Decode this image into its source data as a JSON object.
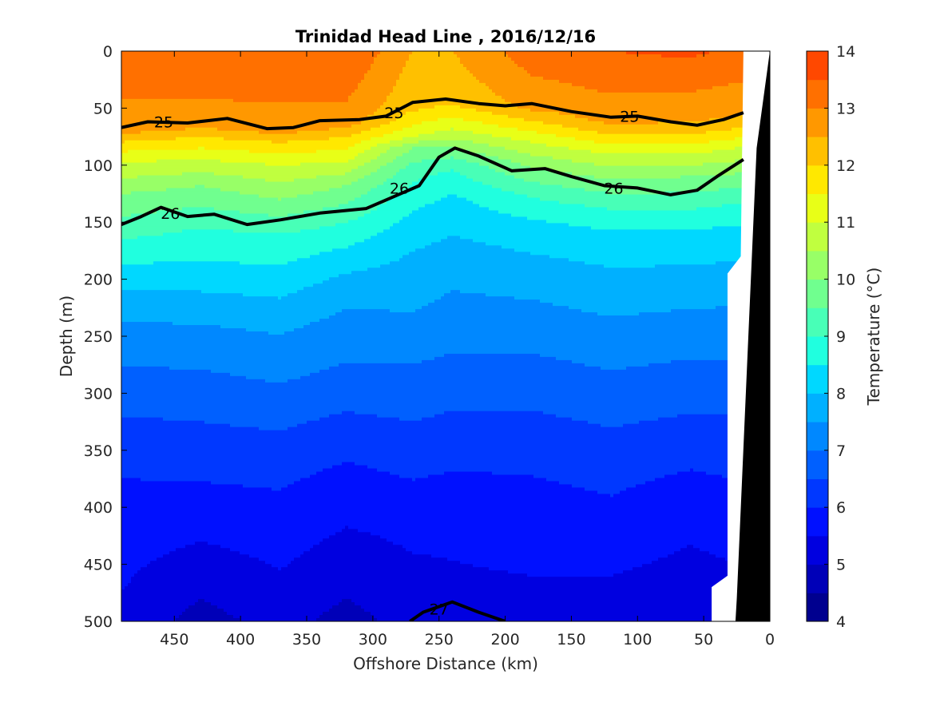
{
  "chart_data": {
    "type": "contourf",
    "title": "Trinidad Head Line , 2016/12/16",
    "xlabel": "Offshore Distance (km)",
    "ylabel": "Depth (m)",
    "colorbar_label": "Temperature (°C)",
    "xlim": [
      490,
      0
    ],
    "ylim": [
      0,
      500
    ],
    "x_reversed": true,
    "y_reversed": true,
    "xticks": [
      450,
      400,
      350,
      300,
      250,
      200,
      150,
      100,
      50,
      0
    ],
    "yticks": [
      0,
      50,
      100,
      150,
      200,
      250,
      300,
      350,
      400,
      450,
      500
    ],
    "colorbar": {
      "min": 4,
      "max": 14,
      "step": 0.5,
      "ticks": [
        4,
        5,
        6,
        7,
        8,
        9,
        10,
        11,
        12,
        13,
        14
      ],
      "colors": [
        "#00008f",
        "#0000b8",
        "#0000e0",
        "#0010ff",
        "#0038ff",
        "#0060ff",
        "#0088ff",
        "#00b0ff",
        "#00d8ff",
        "#20ffdf",
        "#48ffb7",
        "#70ff8f",
        "#98ff67",
        "#c0ff3f",
        "#e8ff17",
        "#ffe800",
        "#ffc000",
        "#ff9800",
        "#ff7000",
        "#ff4800",
        "#f02000",
        "#d80000",
        "#b00000"
      ]
    },
    "temperature_profiles": [
      {
        "x": 490,
        "points": [
          [
            0,
            13.3
          ],
          [
            68,
            12.8
          ],
          [
            78,
            12.1
          ],
          [
            95,
            11.1
          ],
          [
            125,
            10.0
          ],
          [
            165,
            9.0
          ],
          [
            200,
            8.2
          ],
          [
            230,
            7.6
          ],
          [
            260,
            7.2
          ],
          [
            300,
            6.7
          ],
          [
            350,
            6.2
          ],
          [
            400,
            5.8
          ],
          [
            500,
            5.4
          ]
        ]
      },
      {
        "x": 430,
        "points": [
          [
            0,
            13.4
          ],
          [
            63,
            12.8
          ],
          [
            75,
            12.0
          ],
          [
            95,
            11.0
          ],
          [
            118,
            10.0
          ],
          [
            155,
            9.0
          ],
          [
            195,
            8.3
          ],
          [
            232,
            7.6
          ],
          [
            262,
            7.2
          ],
          [
            305,
            6.7
          ],
          [
            355,
            6.2
          ],
          [
            400,
            5.8
          ],
          [
            480,
            5.0
          ],
          [
            500,
            4.8
          ]
        ]
      },
      {
        "x": 370,
        "points": [
          [
            0,
            13.4
          ],
          [
            68,
            12.8
          ],
          [
            80,
            12.0
          ],
          [
            100,
            11.0
          ],
          [
            130,
            10.0
          ],
          [
            160,
            9.0
          ],
          [
            205,
            8.2
          ],
          [
            240,
            7.6
          ],
          [
            275,
            7.2
          ],
          [
            315,
            6.7
          ],
          [
            360,
            6.2
          ],
          [
            410,
            5.8
          ],
          [
            500,
            5.2
          ]
        ]
      },
      {
        "x": 320,
        "points": [
          [
            0,
            13.5
          ],
          [
            62,
            12.8
          ],
          [
            75,
            12.0
          ],
          [
            95,
            11.1
          ],
          [
            118,
            10.0
          ],
          [
            150,
            9.0
          ],
          [
            185,
            8.2
          ],
          [
            215,
            7.6
          ],
          [
            255,
            7.2
          ],
          [
            300,
            6.7
          ],
          [
            340,
            6.2
          ],
          [
            380,
            5.8
          ],
          [
            480,
            5.0
          ],
          [
            500,
            4.8
          ]
        ]
      },
      {
        "x": 270,
        "points": [
          [
            0,
            12.5
          ],
          [
            50,
            12.1
          ],
          [
            65,
            11.5
          ],
          [
            75,
            11.0
          ],
          [
            85,
            10.0
          ],
          [
            105,
            9.2
          ],
          [
            140,
            8.5
          ],
          [
            175,
            8.0
          ],
          [
            220,
            7.6
          ],
          [
            265,
            7.1
          ],
          [
            315,
            6.6
          ],
          [
            365,
            6.1
          ],
          [
            420,
            5.6
          ],
          [
            500,
            5.2
          ]
        ]
      },
      {
        "x": 240,
        "points": [
          [
            0,
            12.5
          ],
          [
            45,
            12.1
          ],
          [
            60,
            11.4
          ],
          [
            72,
            10.8
          ],
          [
            85,
            10.0
          ],
          [
            100,
            9.1
          ],
          [
            130,
            8.4
          ],
          [
            170,
            7.9
          ],
          [
            210,
            7.5
          ],
          [
            255,
            7.1
          ],
          [
            305,
            6.6
          ],
          [
            355,
            6.1
          ],
          [
            420,
            5.6
          ],
          [
            500,
            5.3
          ]
        ]
      },
      {
        "x": 180,
        "points": [
          [
            0,
            13.3
          ],
          [
            50,
            12.6
          ],
          [
            65,
            11.8
          ],
          [
            80,
            11.0
          ],
          [
            100,
            10.1
          ],
          [
            125,
            9.1
          ],
          [
            155,
            8.3
          ],
          [
            200,
            7.7
          ],
          [
            245,
            7.2
          ],
          [
            295,
            6.7
          ],
          [
            345,
            6.2
          ],
          [
            400,
            5.8
          ],
          [
            500,
            5.3
          ]
        ]
      },
      {
        "x": 120,
        "points": [
          [
            0,
            13.5
          ],
          [
            60,
            12.7
          ],
          [
            75,
            11.9
          ],
          [
            90,
            11.0
          ],
          [
            110,
            10.1
          ],
          [
            135,
            9.1
          ],
          [
            165,
            8.3
          ],
          [
            215,
            7.7
          ],
          [
            260,
            7.2
          ],
          [
            310,
            6.7
          ],
          [
            360,
            6.2
          ],
          [
            420,
            5.8
          ],
          [
            500,
            5.2
          ]
        ]
      },
      {
        "x": 60,
        "points": [
          [
            0,
            13.6
          ],
          [
            60,
            12.6
          ],
          [
            75,
            11.9
          ],
          [
            90,
            11.0
          ],
          [
            110,
            10.0
          ],
          [
            135,
            9.1
          ],
          [
            165,
            8.3
          ],
          [
            210,
            7.7
          ],
          [
            250,
            7.2
          ],
          [
            300,
            6.7
          ],
          [
            345,
            6.2
          ],
          [
            400,
            5.7
          ],
          [
            500,
            5.1
          ]
        ]
      },
      {
        "x": 25,
        "points": [
          [
            0,
            13.4
          ],
          [
            55,
            12.6
          ],
          [
            70,
            11.9
          ],
          [
            85,
            11.0
          ],
          [
            105,
            10.1
          ],
          [
            130,
            9.1
          ],
          [
            160,
            8.3
          ],
          [
            200,
            7.8
          ],
          [
            240,
            7.3
          ],
          [
            290,
            6.8
          ],
          [
            340,
            6.3
          ],
          [
            400,
            5.8
          ],
          [
            500,
            5.2
          ]
        ]
      }
    ],
    "density_contours": [
      {
        "level": 25,
        "bold": true,
        "points": [
          [
            490,
            67
          ],
          [
            470,
            62
          ],
          [
            440,
            63
          ],
          [
            410,
            59
          ],
          [
            380,
            68
          ],
          [
            360,
            67
          ],
          [
            340,
            61
          ],
          [
            310,
            60
          ],
          [
            290,
            57
          ],
          [
            270,
            45
          ],
          [
            245,
            42
          ],
          [
            220,
            46
          ],
          [
            200,
            48
          ],
          [
            180,
            46
          ],
          [
            150,
            53
          ],
          [
            120,
            58
          ],
          [
            100,
            57
          ],
          [
            75,
            62
          ],
          [
            55,
            65
          ],
          [
            35,
            60
          ],
          [
            20,
            54
          ]
        ]
      },
      {
        "level": 26,
        "bold": true,
        "points": [
          [
            490,
            152
          ],
          [
            475,
            145
          ],
          [
            460,
            137
          ],
          [
            440,
            145
          ],
          [
            420,
            143
          ],
          [
            395,
            152
          ],
          [
            370,
            148
          ],
          [
            340,
            142
          ],
          [
            305,
            138
          ],
          [
            285,
            128
          ],
          [
            265,
            118
          ],
          [
            250,
            93
          ],
          [
            238,
            85
          ],
          [
            220,
            92
          ],
          [
            195,
            105
          ],
          [
            170,
            103
          ],
          [
            150,
            110
          ],
          [
            125,
            118
          ],
          [
            100,
            120
          ],
          [
            75,
            126
          ],
          [
            55,
            122
          ],
          [
            40,
            110
          ],
          [
            20,
            95
          ]
        ]
      },
      {
        "level": 27,
        "bold": true,
        "points": [
          [
            272,
            500
          ],
          [
            262,
            492
          ],
          [
            240,
            483
          ],
          [
            220,
            492
          ],
          [
            200,
            500
          ]
        ]
      }
    ],
    "contour_labels": [
      {
        "text": "25",
        "x": 458,
        "y": 62
      },
      {
        "text": "25",
        "x": 284,
        "y": 54
      },
      {
        "text": "25",
        "x": 106,
        "y": 57
      },
      {
        "text": "26",
        "x": 453,
        "y": 142
      },
      {
        "text": "26",
        "x": 280,
        "y": 120
      },
      {
        "text": "26",
        "x": 118,
        "y": 120
      },
      {
        "text": "27",
        "x": 250,
        "y": 489
      }
    ]
  }
}
